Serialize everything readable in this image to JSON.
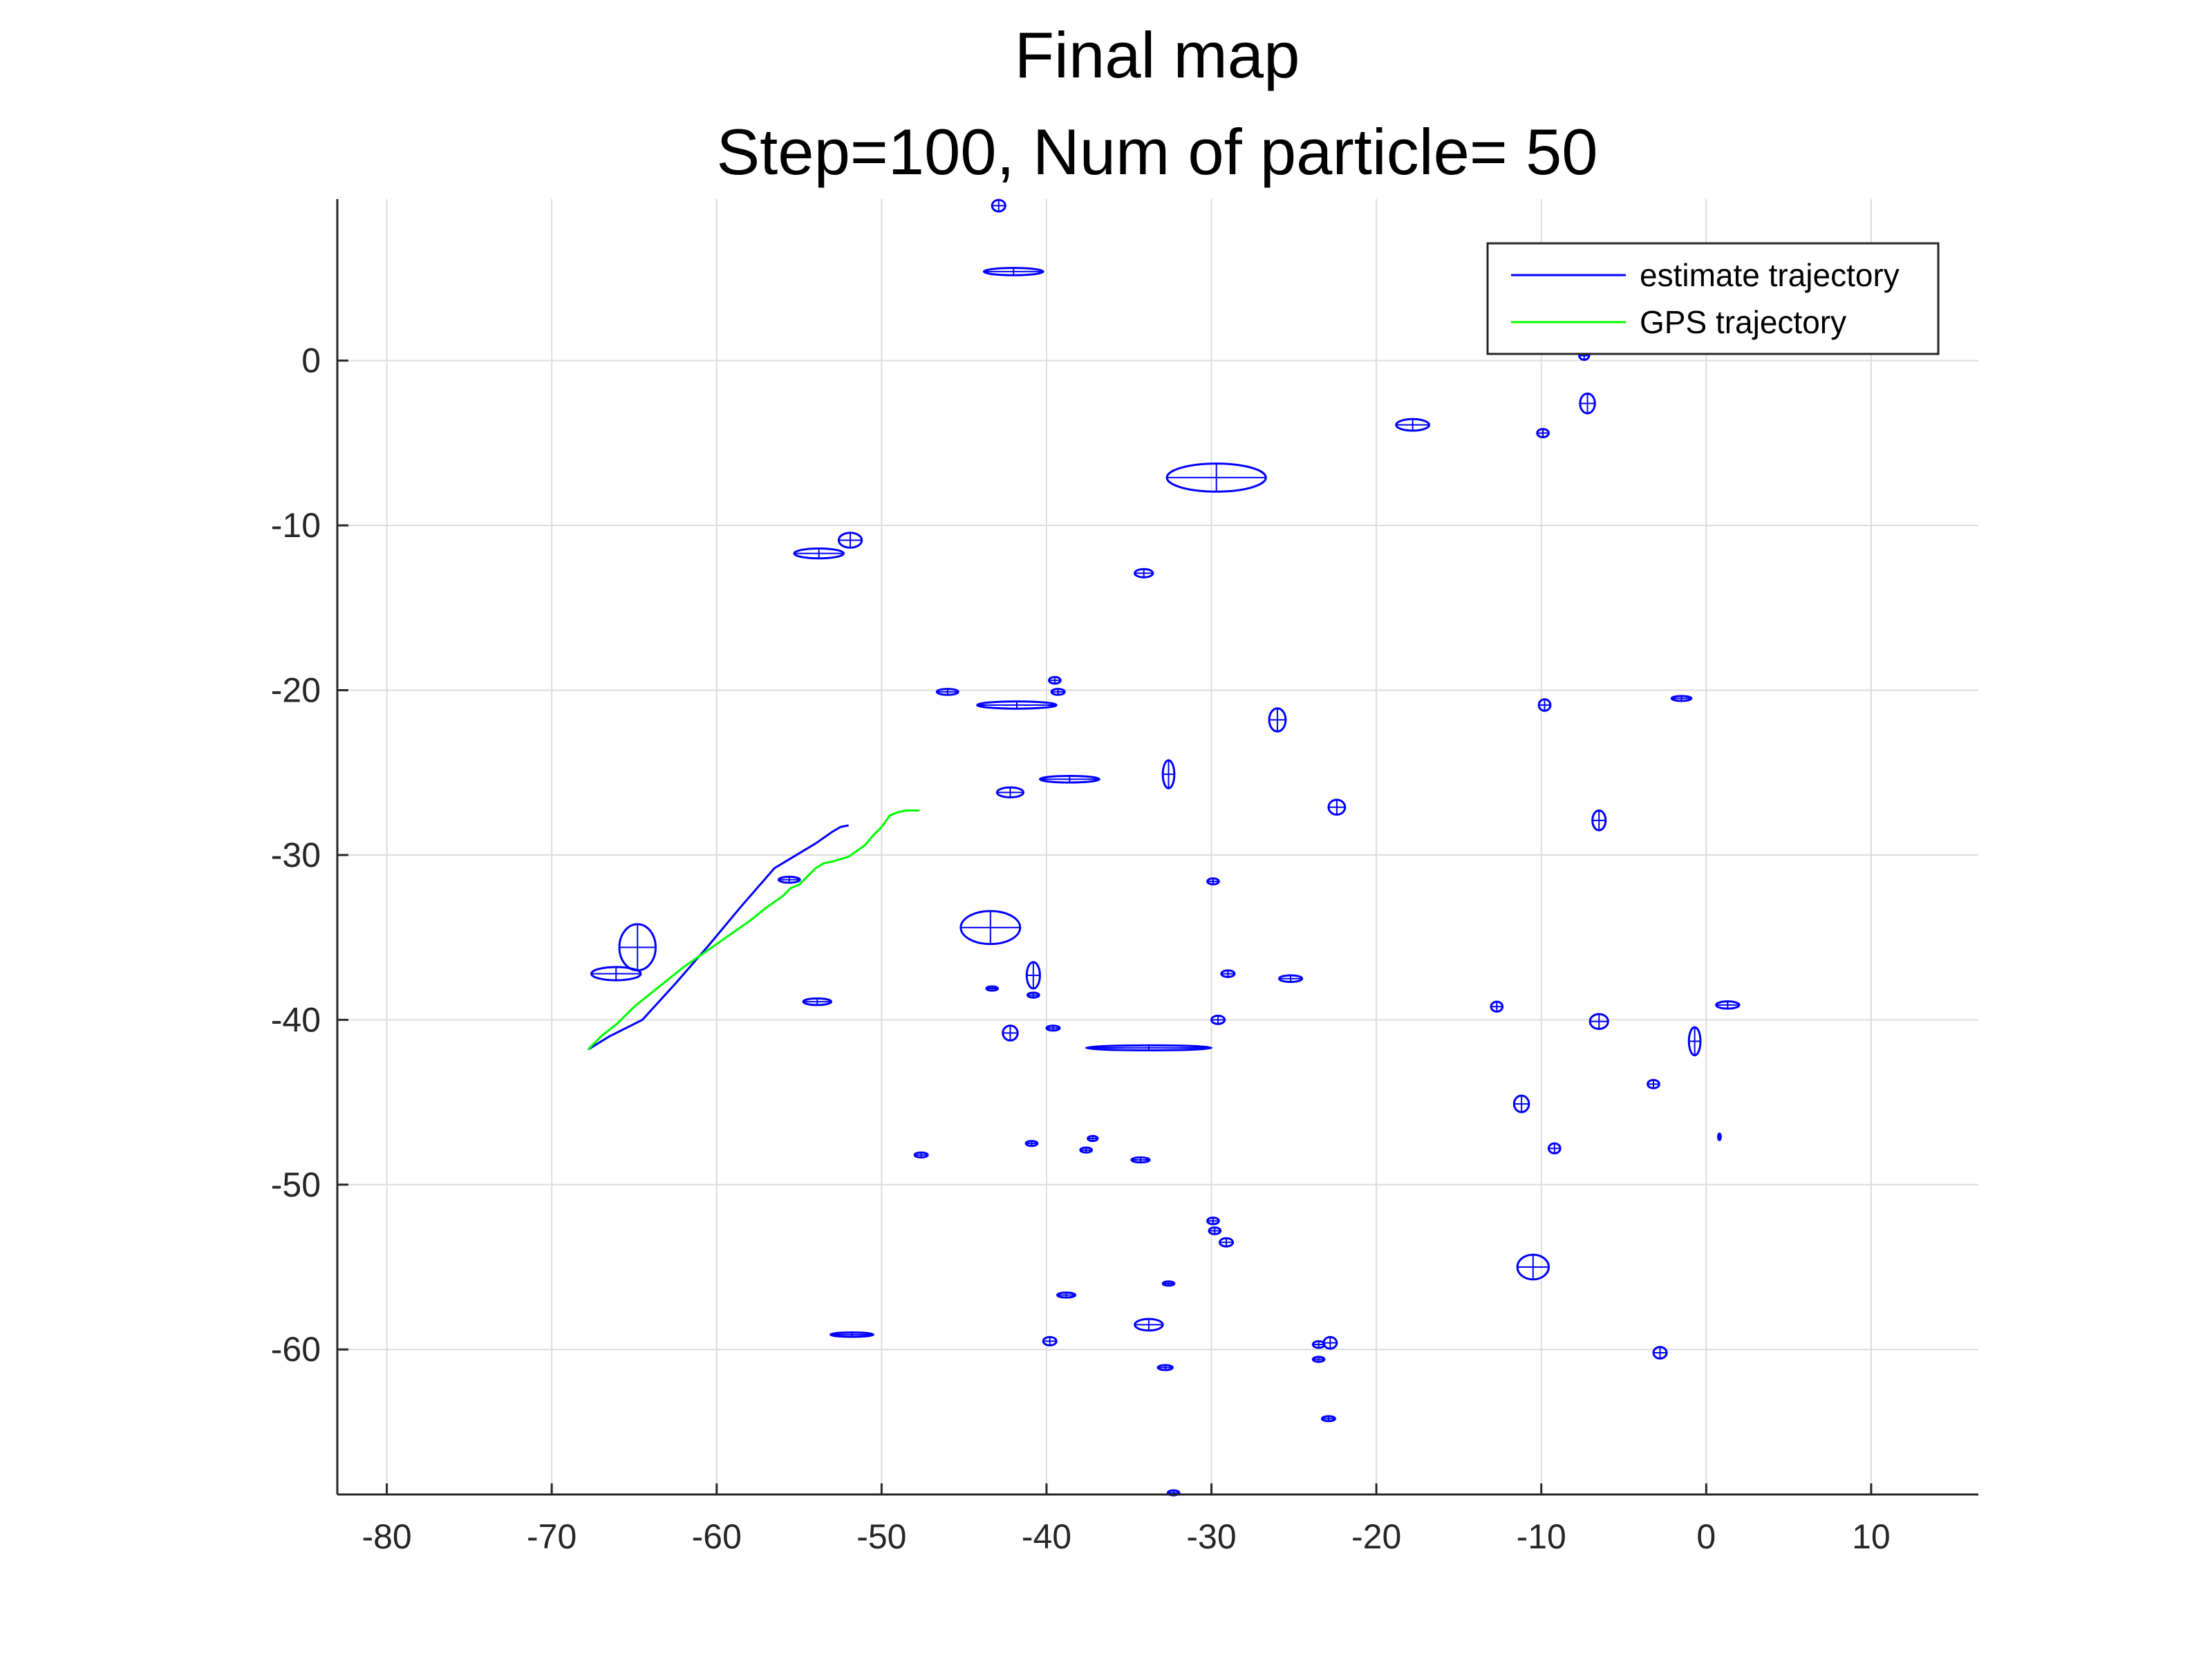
{
  "chart_data": {
    "type": "line",
    "title": "Final map",
    "subtitle": "Step=100, Num of particle= 50",
    "xlabel": "",
    "ylabel": "",
    "xlim": [
      -83,
      16.5
    ],
    "ylim": [
      -68.8,
      9.8
    ],
    "xticks": [
      -80,
      -70,
      -60,
      -50,
      -40,
      -30,
      -20,
      -10,
      0,
      10
    ],
    "yticks": [
      0,
      -10,
      -20,
      -30,
      -40,
      -50,
      -60
    ],
    "grid": true,
    "legend": {
      "position": "top-right",
      "entries": [
        {
          "label": "estimate trajectory",
          "color": "#0000ff"
        },
        {
          "label": "GPS trajectory",
          "color": "#00ff00"
        }
      ]
    },
    "series": [
      {
        "name": "estimate trajectory",
        "color": "#0000ff",
        "x": [
          -67.8,
          -66.5,
          -64.5,
          -62.5,
          -60.5,
          -58.5,
          -56.5,
          -55.5,
          -54.0,
          -53.0,
          -52.5,
          -52.0
        ],
        "y": [
          -41.8,
          -41.0,
          -40.0,
          -37.8,
          -35.5,
          -33.1,
          -30.8,
          -30.2,
          -29.3,
          -28.6,
          -28.3,
          -28.2
        ]
      },
      {
        "name": "GPS trajectory",
        "color": "#00ff00",
        "x": [
          -67.8,
          -67.0,
          -66.0,
          -65.0,
          -64.0,
          -63.0,
          -62.0,
          -61.0,
          -60.0,
          -59.0,
          -58.0,
          -57.0,
          -56.0,
          -55.5,
          -55.0,
          -54.5,
          -54.0,
          -53.5,
          -53.0,
          -52.0,
          -51.0,
          -50.5,
          -50.0,
          -49.5,
          -49.0,
          -48.5,
          -48.0,
          -47.7
        ],
        "y": [
          -41.8,
          -41.0,
          -40.2,
          -39.2,
          -38.4,
          -37.6,
          -36.8,
          -36.1,
          -35.4,
          -34.7,
          -34.0,
          -33.2,
          -32.5,
          -32.0,
          -31.8,
          -31.3,
          -30.8,
          -30.5,
          -30.4,
          -30.1,
          -29.4,
          -28.8,
          -28.3,
          -27.6,
          -27.4,
          -27.3,
          -27.3,
          -27.3
        ]
      }
    ],
    "landmark_ellipses": {
      "color": "#0000ff",
      "items": [
        {
          "x": -42.9,
          "y": 9.4,
          "rx": 0.4,
          "ry": 0.35
        },
        {
          "x": -42.0,
          "y": 5.4,
          "rx": 1.8,
          "ry": 0.22
        },
        {
          "x": -7.4,
          "y": 0.3,
          "rx": 0.3,
          "ry": 0.25
        },
        {
          "x": -7.2,
          "y": -2.6,
          "rx": 0.45,
          "ry": 0.6
        },
        {
          "x": -17.8,
          "y": -3.9,
          "rx": 1.0,
          "ry": 0.35
        },
        {
          "x": -9.9,
          "y": -4.4,
          "rx": 0.35,
          "ry": 0.25
        },
        {
          "x": -29.7,
          "y": -7.1,
          "rx": 3.0,
          "ry": 0.85
        },
        {
          "x": -51.9,
          "y": -10.9,
          "rx": 0.7,
          "ry": 0.45
        },
        {
          "x": -53.8,
          "y": -11.7,
          "rx": 1.5,
          "ry": 0.3
        },
        {
          "x": -34.1,
          "y": -12.9,
          "rx": 0.55,
          "ry": 0.25
        },
        {
          "x": -39.5,
          "y": -19.4,
          "rx": 0.35,
          "ry": 0.2
        },
        {
          "x": -39.3,
          "y": -20.1,
          "rx": 0.4,
          "ry": 0.18
        },
        {
          "x": -46.0,
          "y": -20.1,
          "rx": 0.65,
          "ry": 0.18
        },
        {
          "x": -41.8,
          "y": -20.9,
          "rx": 2.4,
          "ry": 0.22
        },
        {
          "x": -9.8,
          "y": -20.9,
          "rx": 0.35,
          "ry": 0.35
        },
        {
          "x": -1.5,
          "y": -20.5,
          "rx": 0.6,
          "ry": 0.15
        },
        {
          "x": -26.0,
          "y": -21.8,
          "rx": 0.5,
          "ry": 0.7
        },
        {
          "x": -32.6,
          "y": -25.1,
          "rx": 0.35,
          "ry": 0.85
        },
        {
          "x": -38.6,
          "y": -25.4,
          "rx": 1.8,
          "ry": 0.2
        },
        {
          "x": -42.2,
          "y": -26.2,
          "rx": 0.8,
          "ry": 0.3
        },
        {
          "x": -22.4,
          "y": -27.1,
          "rx": 0.5,
          "ry": 0.45
        },
        {
          "x": -6.5,
          "y": -27.9,
          "rx": 0.4,
          "ry": 0.6
        },
        {
          "x": -55.6,
          "y": -31.5,
          "rx": 0.65,
          "ry": 0.18
        },
        {
          "x": -29.9,
          "y": -31.6,
          "rx": 0.35,
          "ry": 0.18
        },
        {
          "x": -43.4,
          "y": -34.4,
          "rx": 1.8,
          "ry": 1.0
        },
        {
          "x": -64.8,
          "y": -35.6,
          "rx": 1.1,
          "ry": 1.4
        },
        {
          "x": -66.1,
          "y": -37.2,
          "rx": 1.5,
          "ry": 0.4
        },
        {
          "x": -40.8,
          "y": -37.3,
          "rx": 0.4,
          "ry": 0.8
        },
        {
          "x": -29.0,
          "y": -37.2,
          "rx": 0.4,
          "ry": 0.2
        },
        {
          "x": -25.2,
          "y": -37.5,
          "rx": 0.7,
          "ry": 0.2
        },
        {
          "x": -43.3,
          "y": -38.1,
          "rx": 0.35,
          "ry": 0.13
        },
        {
          "x": -40.8,
          "y": -38.5,
          "rx": 0.35,
          "ry": 0.15
        },
        {
          "x": -53.9,
          "y": -38.9,
          "rx": 0.85,
          "ry": 0.2
        },
        {
          "x": -12.7,
          "y": -39.2,
          "rx": 0.35,
          "ry": 0.3
        },
        {
          "x": 1.3,
          "y": -39.1,
          "rx": 0.7,
          "ry": 0.22
        },
        {
          "x": -6.5,
          "y": -40.1,
          "rx": 0.55,
          "ry": 0.45
        },
        {
          "x": -29.6,
          "y": -40.0,
          "rx": 0.4,
          "ry": 0.25
        },
        {
          "x": -39.6,
          "y": -40.5,
          "rx": 0.4,
          "ry": 0.15
        },
        {
          "x": -42.2,
          "y": -40.8,
          "rx": 0.45,
          "ry": 0.45
        },
        {
          "x": -0.7,
          "y": -41.3,
          "rx": 0.35,
          "ry": 0.85
        },
        {
          "x": -33.8,
          "y": -41.7,
          "rx": 3.8,
          "ry": 0.15
        },
        {
          "x": -3.2,
          "y": -43.9,
          "rx": 0.35,
          "ry": 0.25
        },
        {
          "x": -11.2,
          "y": -45.1,
          "rx": 0.45,
          "ry": 0.5
        },
        {
          "x": 0.8,
          "y": -47.1,
          "rx": 0.08,
          "ry": 0.2
        },
        {
          "x": -37.2,
          "y": -47.2,
          "rx": 0.3,
          "ry": 0.15
        },
        {
          "x": -40.9,
          "y": -47.5,
          "rx": 0.35,
          "ry": 0.15
        },
        {
          "x": -9.2,
          "y": -47.8,
          "rx": 0.35,
          "ry": 0.3
        },
        {
          "x": -37.6,
          "y": -47.9,
          "rx": 0.35,
          "ry": 0.15
        },
        {
          "x": -47.6,
          "y": -48.2,
          "rx": 0.4,
          "ry": 0.15
        },
        {
          "x": -34.3,
          "y": -48.5,
          "rx": 0.55,
          "ry": 0.15
        },
        {
          "x": -29.9,
          "y": -52.2,
          "rx": 0.35,
          "ry": 0.2
        },
        {
          "x": -29.8,
          "y": -52.8,
          "rx": 0.35,
          "ry": 0.2
        },
        {
          "x": -29.1,
          "y": -53.5,
          "rx": 0.4,
          "ry": 0.25
        },
        {
          "x": -10.5,
          "y": -55.0,
          "rx": 0.95,
          "ry": 0.75
        },
        {
          "x": -32.6,
          "y": -56.0,
          "rx": 0.35,
          "ry": 0.13
        },
        {
          "x": -38.8,
          "y": -56.7,
          "rx": 0.55,
          "ry": 0.15
        },
        {
          "x": -33.8,
          "y": -58.5,
          "rx": 0.85,
          "ry": 0.35
        },
        {
          "x": -51.8,
          "y": -59.1,
          "rx": 1.3,
          "ry": 0.13
        },
        {
          "x": -39.8,
          "y": -59.5,
          "rx": 0.4,
          "ry": 0.25
        },
        {
          "x": -23.5,
          "y": -59.7,
          "rx": 0.35,
          "ry": 0.2
        },
        {
          "x": -22.8,
          "y": -59.6,
          "rx": 0.4,
          "ry": 0.35
        },
        {
          "x": -2.8,
          "y": -60.2,
          "rx": 0.4,
          "ry": 0.35
        },
        {
          "x": -23.5,
          "y": -60.6,
          "rx": 0.35,
          "ry": 0.15
        },
        {
          "x": -32.8,
          "y": -61.1,
          "rx": 0.45,
          "ry": 0.15
        },
        {
          "x": -22.9,
          "y": -64.2,
          "rx": 0.4,
          "ry": 0.15
        },
        {
          "x": -32.3,
          "y": -68.7,
          "rx": 0.35,
          "ry": 0.15
        }
      ]
    }
  }
}
